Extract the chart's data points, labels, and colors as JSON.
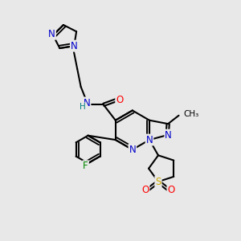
{
  "bg_color": "#e8e8e8",
  "atom_colors": {
    "C": "#000000",
    "N": "#0000cc",
    "O": "#ff0000",
    "F": "#008800",
    "S": "#ccaa00",
    "H": "#008080"
  },
  "bond_color": "#000000",
  "bond_width": 1.5,
  "figsize": [
    3.0,
    3.0
  ],
  "dpi": 100,
  "xlim": [
    0,
    10
  ],
  "ylim": [
    0,
    10
  ]
}
